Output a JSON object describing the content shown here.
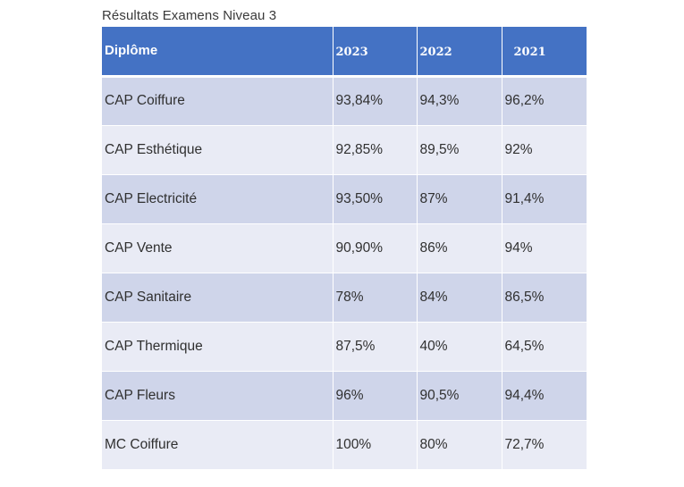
{
  "title": "Résultats Examens Niveau 3",
  "table": {
    "headers": [
      "Diplôme",
      "2023",
      "2022",
      "2021"
    ],
    "rows": [
      [
        "CAP Coiffure",
        "93,84%",
        "94,3%",
        "96,2%"
      ],
      [
        "CAP Esthétique",
        "92,85%",
        "89,5%",
        "92%"
      ],
      [
        "CAP Electricité",
        "93,50%",
        "87%",
        "91,4%"
      ],
      [
        "CAP Vente",
        "90,90%",
        "86%",
        "94%"
      ],
      [
        "CAP Sanitaire",
        "78%",
        "84%",
        "86,5%"
      ],
      [
        "CAP Thermique",
        "87,5%",
        "40%",
        "64,5%"
      ],
      [
        "CAP Fleurs",
        "96%",
        "90,5%",
        "94,4%"
      ],
      [
        "MC Coiffure",
        "100%",
        "80%",
        "72,7%"
      ]
    ]
  },
  "colors": {
    "header_bg": "#4472c4",
    "row_odd": "#cfd5ea",
    "row_even": "#e9ebf5"
  }
}
